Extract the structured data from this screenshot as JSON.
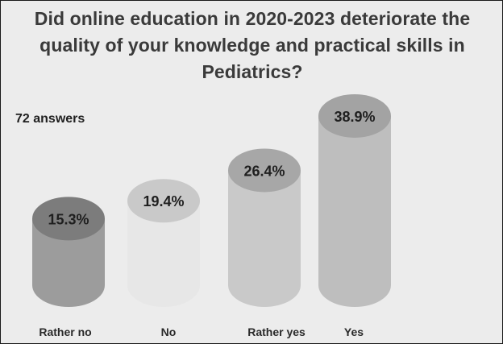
{
  "chart_data": {
    "type": "bar",
    "title": "Did online education in 2020-2023 deteriorate the\nquality of your knowledge and practical skills in\nPediatrics?",
    "subtitle": "72 answers",
    "categories": [
      "Rather no",
      "No",
      "Rather yes",
      "Yes"
    ],
    "values": [
      15.3,
      19.4,
      26.4,
      38.9
    ],
    "data_labels": [
      "15.3%",
      "19.4%",
      "26.4%",
      "38.9%"
    ],
    "unit": "%",
    "style": "3d-cylinder",
    "colors": {
      "Rather no": {
        "body": "#9c9c9c",
        "top": "#7c7c7c"
      },
      "No": {
        "body": "#e7e7e7",
        "top": "#c9c9c9"
      },
      "Rather yes": {
        "body": "#c9c9c9",
        "top": "#a7a7a7"
      },
      "Yes": {
        "body": "#bebebe",
        "top": "#a3a3a3"
      }
    }
  }
}
